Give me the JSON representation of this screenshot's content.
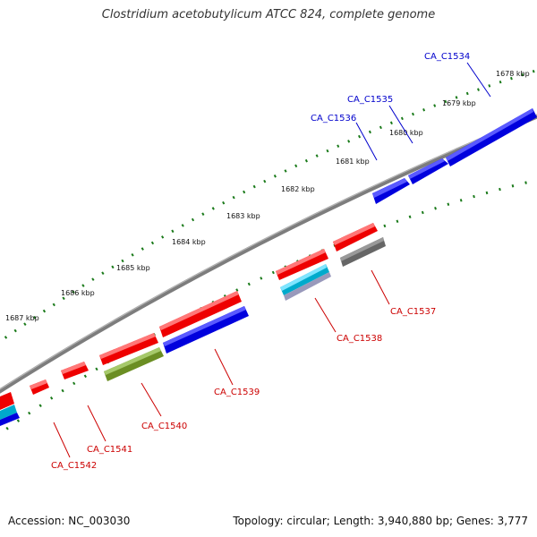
{
  "title": "Clostridium acetobutylicum ATCC 824, complete genome",
  "footer": {
    "accession": "Accession: NC_003030",
    "summary": "Topology: circular; Length: 3,940,880 bp; Genes: 3,777"
  },
  "colors": {
    "backbone": "#808080",
    "tick": "#1a7a1a",
    "forward_label": "#0000cc",
    "reverse_label": "#cc0000"
  },
  "scale_labels": [
    "1678 kbp",
    "1679 kbp",
    "1680 kbp",
    "1681 kbp",
    "1682 kbp",
    "1683 kbp",
    "1684 kbp",
    "1685 kbp",
    "1686 kbp",
    "1687 kbp"
  ],
  "genes": [
    {
      "name": "CA_C1534",
      "strand": "forward",
      "color": "#0000dd"
    },
    {
      "name": "CA_C1535",
      "strand": "forward",
      "color": "#0000dd"
    },
    {
      "name": "CA_C1536",
      "strand": "forward",
      "color": "#0000dd"
    },
    {
      "name": "CA_C1537",
      "strand": "reverse",
      "color": "#666666"
    },
    {
      "name": "CA_C1538",
      "strand": "reverse",
      "color": "#00aacc"
    },
    {
      "name": "CA_C1539",
      "strand": "reverse",
      "color": "#0000dd"
    },
    {
      "name": "CA_C1540",
      "strand": "reverse",
      "color": "#6b8e23"
    },
    {
      "name": "CA_C1541",
      "strand": "reverse",
      "color": "#ee0000"
    },
    {
      "name": "CA_C1542",
      "strand": "reverse",
      "color": "#ee0000"
    }
  ]
}
